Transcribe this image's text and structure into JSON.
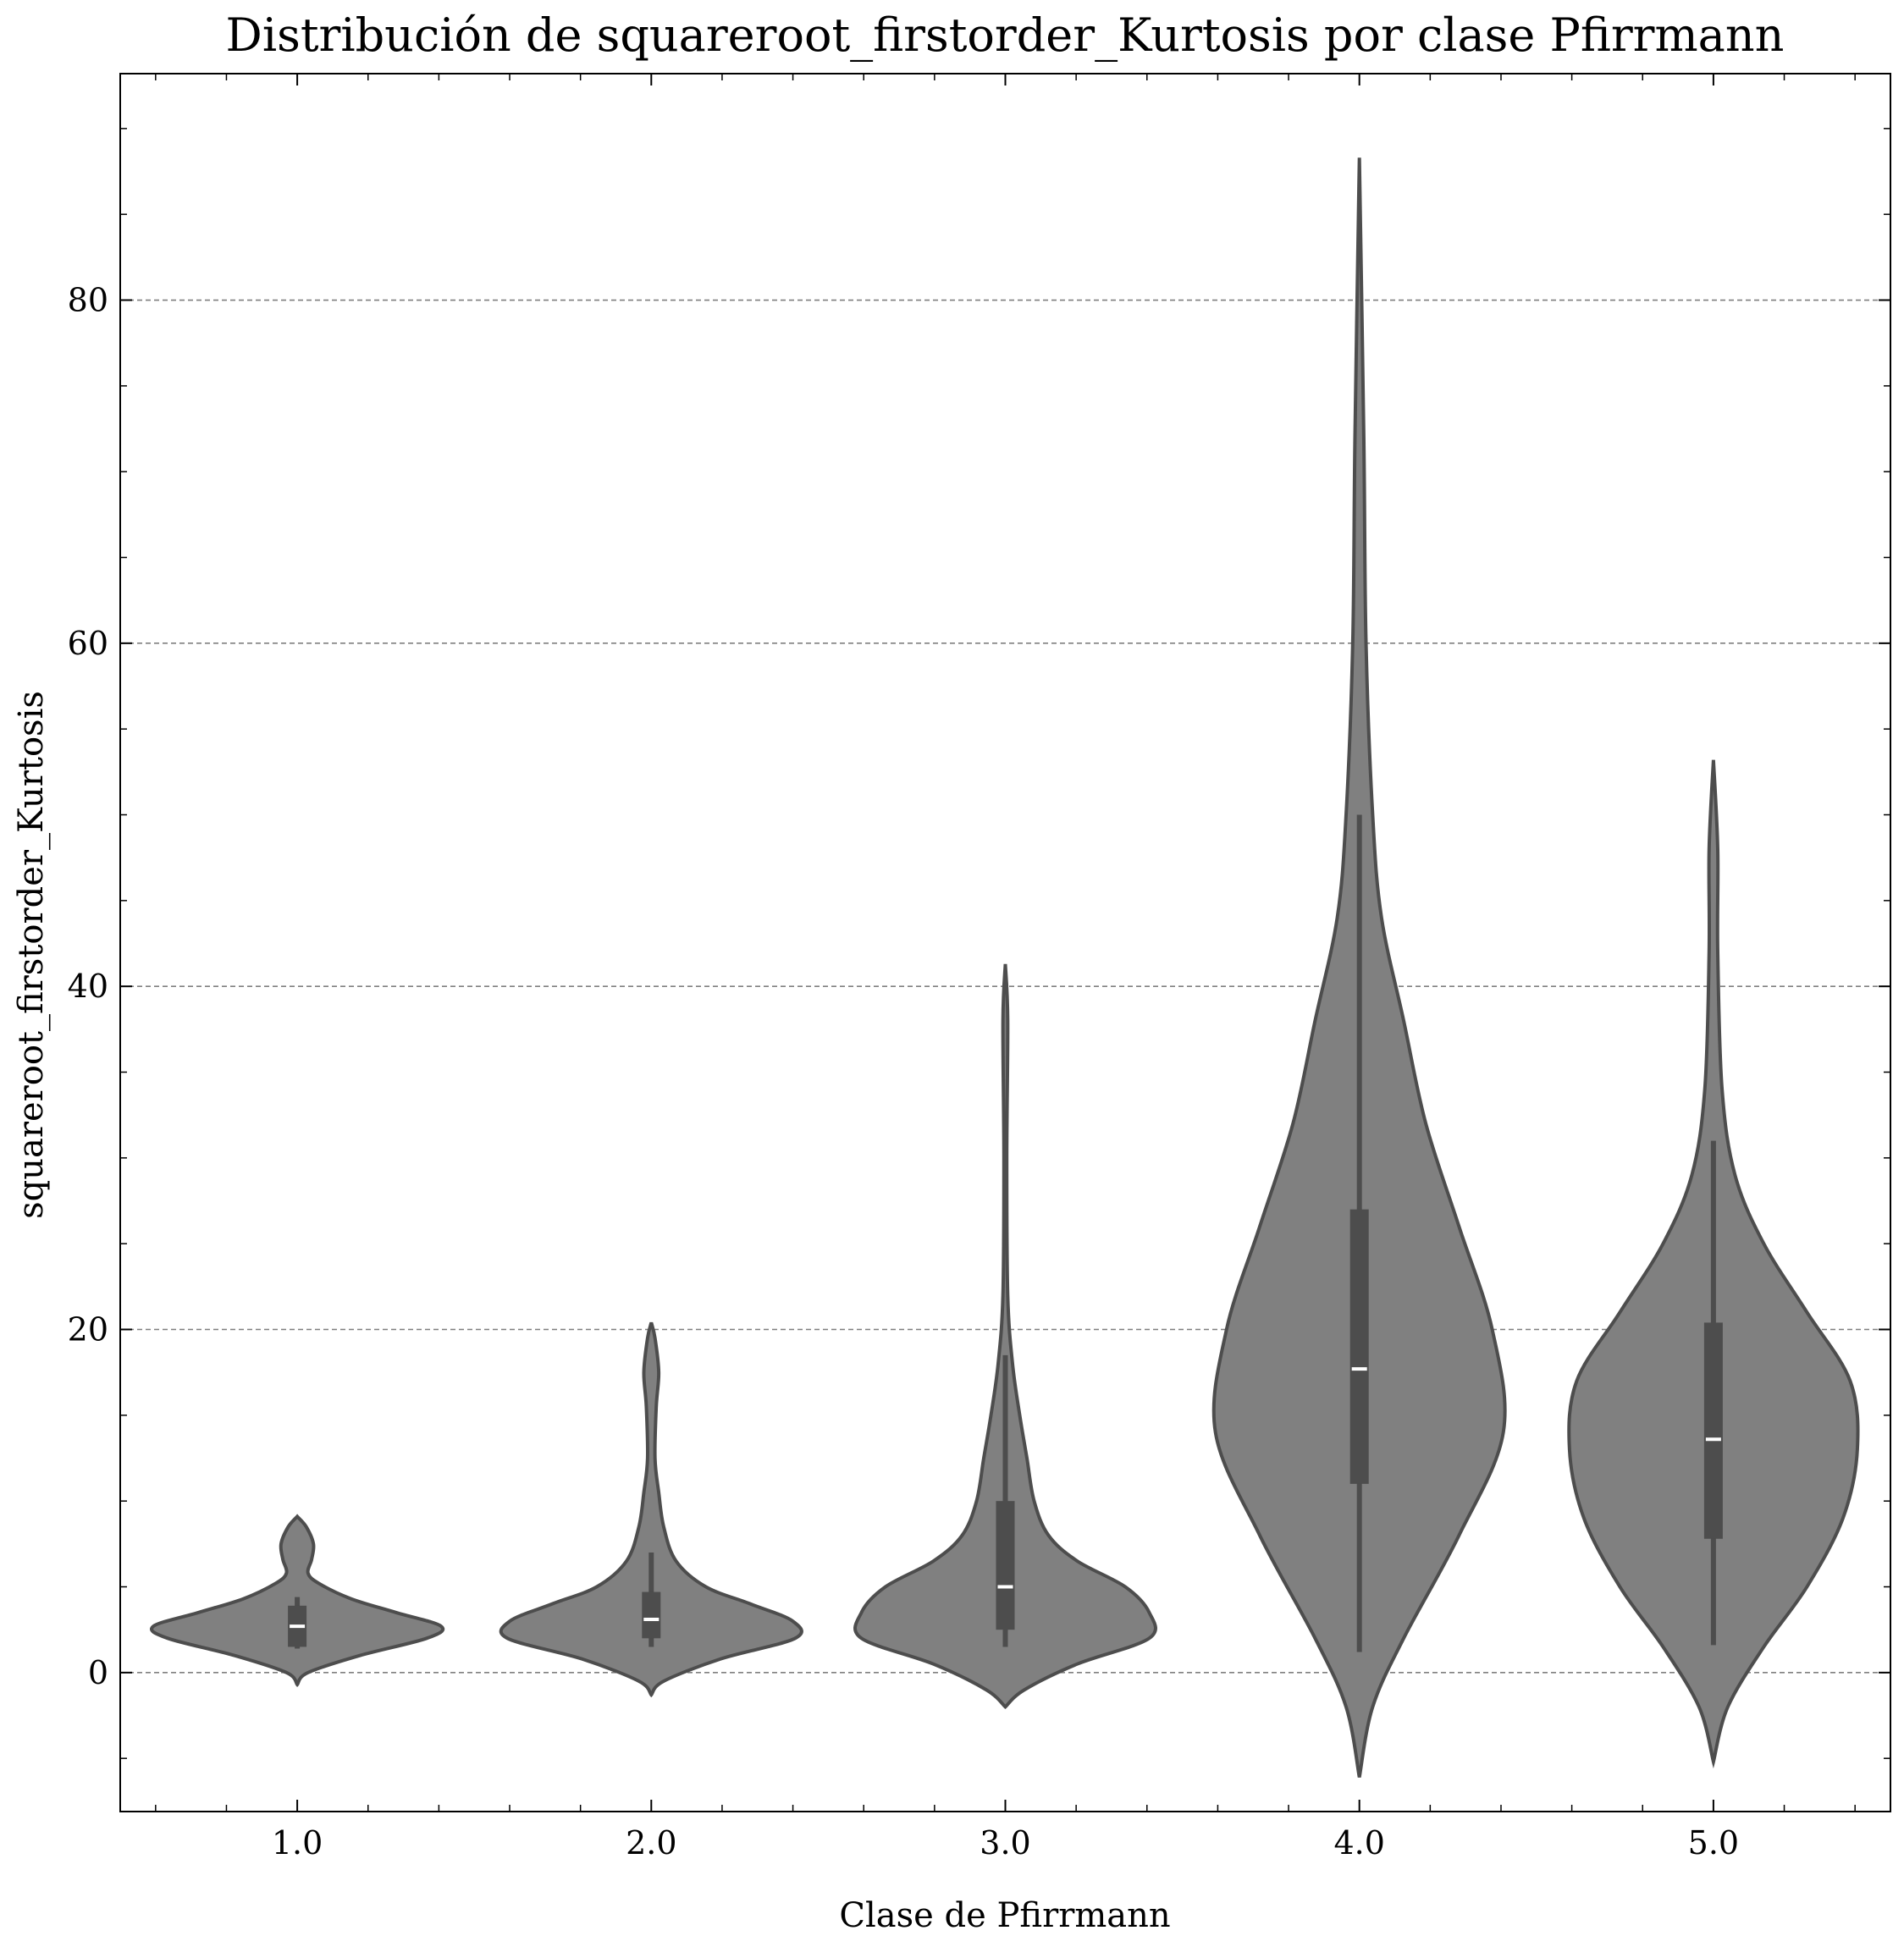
{
  "chart_data": {
    "type": "violin",
    "title": "Distribución de squareroot_firstorder_Kurtosis por clase Pfirrmann",
    "xlabel": "Clase de Pfirrmann",
    "ylabel": "squareroot_firstorder_Kurtosis",
    "categories": [
      "1.0",
      "2.0",
      "3.0",
      "4.0",
      "5.0"
    ],
    "ylim": [
      -8.1,
      93.2
    ],
    "yticks": [
      0,
      20,
      40,
      60,
      80
    ],
    "ytick_labels": [
      "0",
      "20",
      "40",
      "60",
      "80"
    ],
    "grid": "horizontal dashed at major y ticks",
    "colors": {
      "violin_fill": "#808080",
      "violin_edge": "#4d4d4d",
      "box": "#4d4d4d",
      "median": "#ffffff",
      "grid": "#7f7f7f"
    },
    "violins": [
      {
        "category": "1.0",
        "q1": 1.5,
        "median": 2.7,
        "q3": 3.9,
        "whisker_low": 1.4,
        "whisker_high": 4.4,
        "density": [
          [
            -0.7,
            0.0
          ],
          [
            0.0,
            0.06
          ],
          [
            1.0,
            0.35
          ],
          [
            2.0,
            0.72
          ],
          [
            2.7,
            0.8
          ],
          [
            3.5,
            0.55
          ],
          [
            4.3,
            0.3
          ],
          [
            5.2,
            0.12
          ],
          [
            5.8,
            0.06
          ],
          [
            6.6,
            0.08
          ],
          [
            7.5,
            0.09
          ],
          [
            8.5,
            0.05
          ],
          [
            9.1,
            0.0
          ]
        ]
      },
      {
        "category": "2.0",
        "q1": 2.0,
        "median": 3.1,
        "q3": 4.7,
        "whisker_low": 1.5,
        "whisker_high": 7.0,
        "density": [
          [
            -1.3,
            0.0
          ],
          [
            -0.5,
            0.05
          ],
          [
            0.8,
            0.28
          ],
          [
            2.0,
            0.58
          ],
          [
            3.0,
            0.57
          ],
          [
            4.0,
            0.4
          ],
          [
            5.0,
            0.22
          ],
          [
            6.5,
            0.1
          ],
          [
            8.5,
            0.05
          ],
          [
            10.5,
            0.03
          ],
          [
            12.5,
            0.015
          ],
          [
            15.5,
            0.02
          ],
          [
            17.5,
            0.03
          ],
          [
            19.5,
            0.015
          ],
          [
            20.4,
            0.0
          ]
        ]
      },
      {
        "category": "3.0",
        "q1": 2.5,
        "median": 5.0,
        "q3": 10.0,
        "whisker_low": 1.5,
        "whisker_high": 18.5,
        "density": [
          [
            -2.0,
            0.0
          ],
          [
            -1.0,
            0.04
          ],
          [
            0.5,
            0.15
          ],
          [
            2.0,
            0.3
          ],
          [
            3.5,
            0.3
          ],
          [
            5.0,
            0.25
          ],
          [
            6.5,
            0.15
          ],
          [
            8.0,
            0.09
          ],
          [
            10.0,
            0.06
          ],
          [
            12.5,
            0.045
          ],
          [
            15.0,
            0.03
          ],
          [
            18.0,
            0.015
          ],
          [
            22.0,
            0.005
          ],
          [
            30.0,
            0.003
          ],
          [
            38.0,
            0.005
          ],
          [
            41.3,
            0.0
          ]
        ]
      },
      {
        "category": "4.0",
        "q1": 11.0,
        "median": 17.7,
        "q3": 27.0,
        "whisker_low": 1.2,
        "whisker_high": 50.0,
        "density": [
          [
            -6.1,
            0.0
          ],
          [
            -2.0,
            0.006
          ],
          [
            2.0,
            0.02
          ],
          [
            8.0,
            0.045
          ],
          [
            14.0,
            0.065
          ],
          [
            20.0,
            0.06
          ],
          [
            26.0,
            0.045
          ],
          [
            32.0,
            0.03
          ],
          [
            38.0,
            0.02
          ],
          [
            44.0,
            0.01
          ],
          [
            50.0,
            0.006
          ],
          [
            60.0,
            0.003
          ],
          [
            72.0,
            0.002
          ],
          [
            88.3,
            0.0
          ]
        ]
      },
      {
        "category": "5.0",
        "q1": 7.8,
        "median": 13.6,
        "q3": 20.4,
        "whisker_low": 1.6,
        "whisker_high": 31.0,
        "density": [
          [
            -5.2,
            0.0
          ],
          [
            -2.0,
            0.01
          ],
          [
            1.5,
            0.035
          ],
          [
            5.0,
            0.065
          ],
          [
            9.0,
            0.09
          ],
          [
            13.0,
            0.1
          ],
          [
            17.0,
            0.095
          ],
          [
            21.0,
            0.065
          ],
          [
            25.0,
            0.035
          ],
          [
            29.0,
            0.015
          ],
          [
            34.0,
            0.006
          ],
          [
            42.0,
            0.003
          ],
          [
            48.0,
            0.003
          ],
          [
            53.2,
            0.0
          ]
        ]
      }
    ]
  }
}
